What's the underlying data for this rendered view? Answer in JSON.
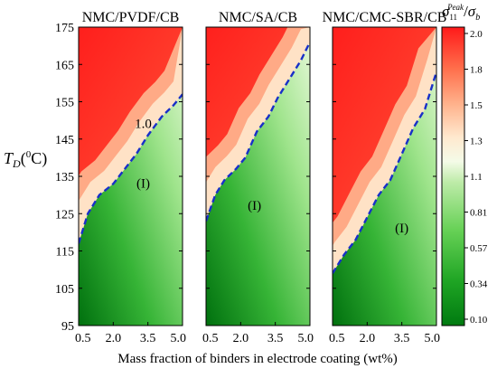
{
  "chart_data": [
    {
      "type": "heatmap",
      "title": "NMC/PVDF/CB",
      "x_ticks": [
        "0.5",
        "2.0",
        "3.5",
        "5.0"
      ],
      "xlim": [
        0.5,
        5.0
      ],
      "ylim": [
        95,
        175
      ],
      "contour_1_0": [
        [
          0.5,
          117
        ],
        [
          0.9,
          125
        ],
        [
          1.4,
          130
        ],
        [
          2.0,
          133
        ],
        [
          2.5,
          137
        ],
        [
          3.0,
          141
        ],
        [
          3.5,
          146
        ],
        [
          4.1,
          151
        ],
        [
          4.6,
          154
        ],
        [
          5.0,
          157
        ]
      ],
      "contour_label": "1.0",
      "contour_label_at": [
        3.3,
        148
      ],
      "region_label": "(I)",
      "region_label_at": [
        3.3,
        132
      ]
    },
    {
      "type": "heatmap",
      "title": "NMC/SA/CB",
      "x_ticks": [
        "0.5",
        "2.0",
        "3.5",
        "5.0"
      ],
      "xlim": [
        0.5,
        5.0
      ],
      "ylim": [
        95,
        175
      ],
      "contour_1_0": [
        [
          0.5,
          123
        ],
        [
          0.9,
          130
        ],
        [
          1.3,
          134
        ],
        [
          1.8,
          137
        ],
        [
          2.2,
          140
        ],
        [
          2.7,
          147
        ],
        [
          3.2,
          151
        ],
        [
          3.6,
          156
        ],
        [
          4.1,
          161
        ],
        [
          4.6,
          166
        ],
        [
          5.0,
          171
        ]
      ],
      "region_label": "(I)",
      "region_label_at": [
        2.6,
        126
      ]
    },
    {
      "type": "heatmap",
      "title": "NMC/CMC-SBR/CB",
      "x_ticks": [
        "0.5",
        "2.0",
        "3.5",
        "5.0"
      ],
      "xlim": [
        0.5,
        5.0
      ],
      "ylim": [
        95,
        175
      ],
      "contour_1_0": [
        [
          0.5,
          109
        ],
        [
          1.0,
          114
        ],
        [
          1.5,
          118
        ],
        [
          2.0,
          124
        ],
        [
          2.5,
          130
        ],
        [
          3.0,
          134
        ],
        [
          3.5,
          141
        ],
        [
          4.0,
          148
        ],
        [
          4.5,
          153
        ],
        [
          5.0,
          163
        ]
      ],
      "region_label": "(I)",
      "region_label_at": [
        3.5,
        120
      ]
    }
  ],
  "y_axis": {
    "label_T": "T",
    "label_sub": "D",
    "label_open": "(",
    "label_sup": "0",
    "label_close": "C)",
    "ticks": [
      "95",
      "105",
      "115",
      "125",
      "135",
      "145",
      "155",
      "165",
      "175"
    ]
  },
  "x_axis_label": "Mass fraction of binders in electrode coating (wt%)",
  "colorbar": {
    "ticks": [
      "2.0",
      "1.8",
      "1.5",
      "1.3",
      "1.1",
      "0.81",
      "0.57",
      "0.34",
      "0.10"
    ],
    "title_sigma": "σ",
    "title_sub": "11",
    "title_sup": "Peak",
    "title_slash": "/",
    "title_sigma2": "σ",
    "title_sub2": "b",
    "colors": [
      "#ff1a1a",
      "#ff5a3c",
      "#ffa37c",
      "#ffe0bf",
      "#f3fbe6",
      "#c2efb0",
      "#88de78",
      "#4fc244",
      "#159c1c",
      "#007a10"
    ]
  }
}
